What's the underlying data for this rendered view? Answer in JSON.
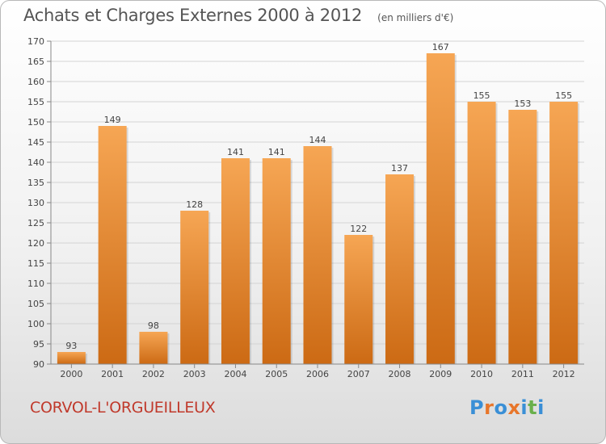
{
  "header": {
    "title": "Achats et Charges Externes 2000 à 2012",
    "unit": "(en milliers d'€)"
  },
  "footer": {
    "commune": "CORVOL-L'ORGUEILLEUX",
    "logo": {
      "text": "Proxiti",
      "letter_colors": [
        "#3a8fd6",
        "#e8762a",
        "#3a8fd6",
        "#e8762a",
        "#3a8fd6",
        "#6ab04c",
        "#3a8fd6"
      ]
    }
  },
  "colors": {
    "bar_top": "#f6a654",
    "bar_bottom": "#cc6a14",
    "axis_text": "#444444",
    "title_text": "#555555",
    "commune_text": "#c0392b"
  },
  "chart_data": {
    "type": "bar",
    "title": "Achats et Charges Externes 2000 à 2012",
    "subtitle": "(en milliers d'€)",
    "xlabel": "",
    "ylabel": "",
    "categories": [
      "2000",
      "2001",
      "2002",
      "2003",
      "2004",
      "2005",
      "2006",
      "2007",
      "2008",
      "2009",
      "2010",
      "2011",
      "2012"
    ],
    "values": [
      93,
      149,
      98,
      128,
      141,
      141,
      144,
      122,
      137,
      167,
      155,
      153,
      155
    ],
    "ylim": [
      90,
      170
    ],
    "yticks": [
      90,
      95,
      100,
      105,
      110,
      115,
      120,
      125,
      130,
      135,
      140,
      145,
      150,
      155,
      160,
      165,
      170
    ],
    "grid": true,
    "legend": "none"
  }
}
